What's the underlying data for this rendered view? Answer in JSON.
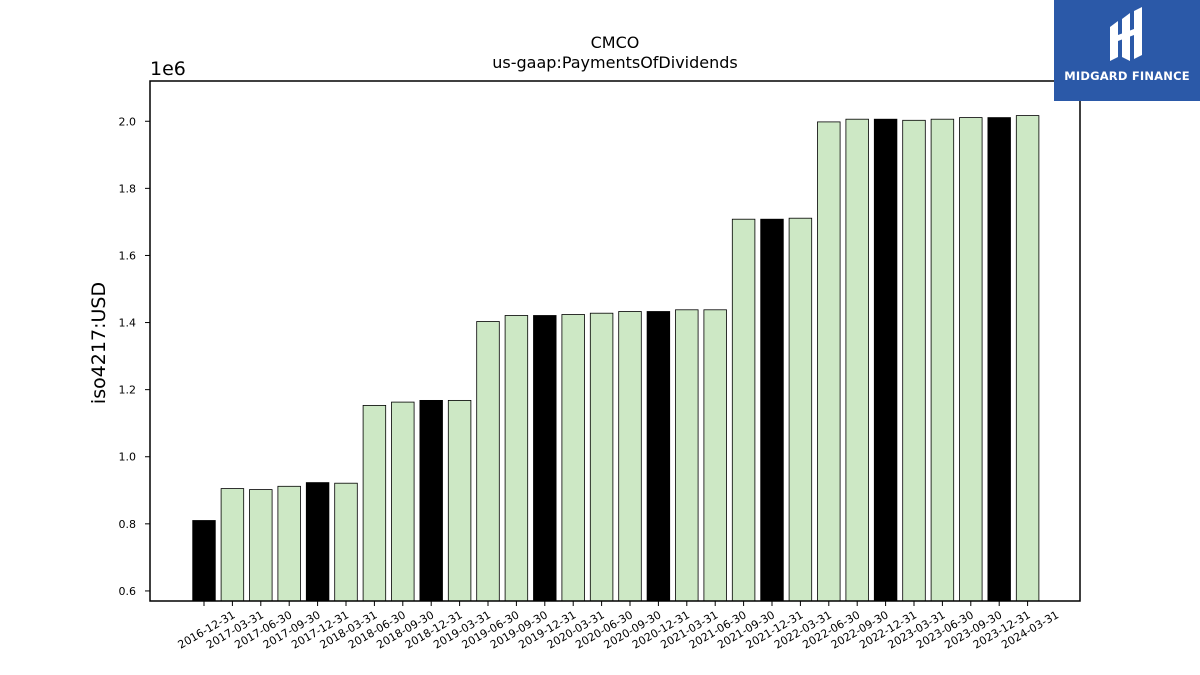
{
  "logo": {
    "text": "MIDGARD FINANCE",
    "icon": "midgard-logo-icon",
    "background": "#2b59a8"
  },
  "chart_data": {
    "type": "bar",
    "title": "CMCO",
    "subtitle": "us-gaap:PaymentsOfDividends",
    "ylabel": "iso4217:USD",
    "xlabel": "",
    "y_offset_label": "1e6",
    "ylim": [
      0.57,
      2.12
    ],
    "y_ticks": [
      "0.6",
      "0.8",
      "1.0",
      "1.2",
      "1.4",
      "1.6",
      "1.8",
      "2.0"
    ],
    "grid": false,
    "colors": {
      "highlight": "#000000",
      "normal": "#cde8c5",
      "edge": "#000000"
    },
    "categories": [
      "2016-12-31",
      "2017-03-31",
      "2017-06-30",
      "2017-09-30",
      "2017-12-31",
      "2018-03-31",
      "2018-06-30",
      "2018-09-30",
      "2018-12-31",
      "2019-03-31",
      "2019-06-30",
      "2019-09-30",
      "2019-12-31",
      "2020-03-31",
      "2020-06-30",
      "2020-09-30",
      "2020-12-31",
      "2021-03-31",
      "2021-06-30",
      "2021-09-30",
      "2021-12-31",
      "2022-03-31",
      "2022-06-30",
      "2022-09-30",
      "2022-12-31",
      "2023-03-31",
      "2023-06-30",
      "2023-09-30",
      "2023-12-31",
      "2024-03-31"
    ],
    "values": [
      0.81,
      0.905,
      0.902,
      0.912,
      0.923,
      0.921,
      1.153,
      1.163,
      1.168,
      1.168,
      1.403,
      1.421,
      1.421,
      1.424,
      1.428,
      1.433,
      1.433,
      1.438,
      1.438,
      1.708,
      1.708,
      1.711,
      1.998,
      2.006,
      2.006,
      2.003,
      2.006,
      2.011,
      2.011,
      2.017
    ],
    "highlighted": [
      true,
      false,
      false,
      false,
      true,
      false,
      false,
      false,
      true,
      false,
      false,
      false,
      true,
      false,
      false,
      false,
      true,
      false,
      false,
      false,
      true,
      false,
      false,
      false,
      true,
      false,
      false,
      false,
      true,
      false
    ]
  }
}
